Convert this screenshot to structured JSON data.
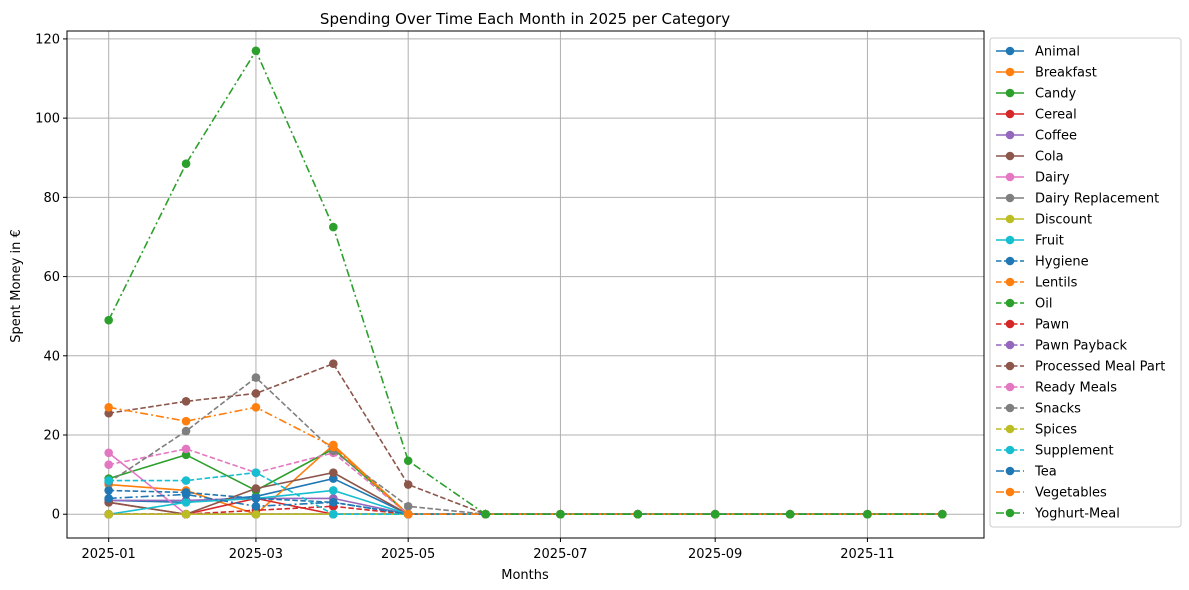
{
  "chart_data": {
    "type": "line",
    "title": "Spending Over Time Each Month in 2025 per Category",
    "xlabel": "Months",
    "ylabel": "Spent Money in €",
    "x": [
      "2025-01-01",
      "2025-02-01",
      "2025-03-01",
      "2025-04-01",
      "2025-05-01",
      "2025-06-01",
      "2025-07-01",
      "2025-08-01",
      "2025-09-01",
      "2025-10-01",
      "2025-11-01",
      "2025-12-01"
    ],
    "x_tick_labels": [
      "2025-01",
      "2025-03",
      "2025-05",
      "2025-07",
      "2025-09",
      "2025-11"
    ],
    "x_tick_dates": [
      "2025-01-01",
      "2025-03-01",
      "2025-05-01",
      "2025-07-01",
      "2025-09-01",
      "2025-11-01"
    ],
    "ylim": [
      -6,
      122
    ],
    "y_ticks": [
      0,
      20,
      40,
      60,
      80,
      100,
      120
    ],
    "grid": true,
    "legend_position": "outside-right",
    "series": [
      {
        "name": "Animal",
        "color": "#1f77b4",
        "dash": "solid",
        "values": [
          3.5,
          3.0,
          4.5,
          9.0,
          0,
          0,
          0,
          0,
          0,
          0,
          0,
          0
        ]
      },
      {
        "name": "Breakfast",
        "color": "#ff7f0e",
        "dash": "solid",
        "values": [
          7.5,
          6.0,
          0,
          17.5,
          0,
          0,
          0,
          0,
          0,
          0,
          0,
          0
        ]
      },
      {
        "name": "Candy",
        "color": "#2ca02c",
        "dash": "solid",
        "values": [
          9.0,
          15.0,
          6.0,
          16.5,
          0,
          0,
          0,
          0,
          0,
          0,
          0,
          0
        ]
      },
      {
        "name": "Cereal",
        "color": "#d62728",
        "dash": "solid",
        "values": [
          3.0,
          0,
          4.0,
          0,
          0,
          0,
          0,
          0,
          0,
          0,
          0,
          0
        ]
      },
      {
        "name": "Coffee",
        "color": "#9467bd",
        "dash": "solid",
        "values": [
          3.5,
          3.5,
          4.0,
          4.0,
          0,
          0,
          0,
          0,
          0,
          0,
          0,
          0
        ]
      },
      {
        "name": "Cola",
        "color": "#8c564b",
        "dash": "solid",
        "values": [
          3.0,
          0,
          6.5,
          10.5,
          0,
          0,
          0,
          0,
          0,
          0,
          0,
          0
        ]
      },
      {
        "name": "Dairy",
        "color": "#e377c2",
        "dash": "solid",
        "values": [
          15.5,
          0,
          0,
          0,
          0,
          0,
          0,
          0,
          0,
          0,
          0,
          0
        ]
      },
      {
        "name": "Dairy Replacement",
        "color": "#7f7f7f",
        "dash": "solid",
        "values": [
          0,
          0,
          0,
          0,
          0,
          0,
          0,
          0,
          0,
          0,
          0,
          0
        ]
      },
      {
        "name": "Discount",
        "color": "#bcbd22",
        "dash": "solid",
        "values": [
          0,
          0,
          0,
          0,
          0,
          0,
          0,
          0,
          0,
          0,
          0,
          0
        ]
      },
      {
        "name": "Fruit",
        "color": "#17becf",
        "dash": "solid",
        "values": [
          0,
          3.0,
          4.0,
          6.0,
          0,
          0,
          0,
          0,
          0,
          0,
          0,
          0
        ]
      },
      {
        "name": "Hygiene",
        "color": "#1f77b4",
        "dash": "dashed",
        "values": [
          6.0,
          5.5,
          4.0,
          3.0,
          0,
          0,
          0,
          0,
          0,
          0,
          0,
          0
        ]
      },
      {
        "name": "Lentils",
        "color": "#ff7f0e",
        "dash": "dashed",
        "values": [
          0,
          0,
          0,
          0,
          0,
          0,
          0,
          0,
          0,
          0,
          0,
          0
        ]
      },
      {
        "name": "Oil",
        "color": "#2ca02c",
        "dash": "dashed",
        "values": [
          0,
          0,
          0,
          0,
          0,
          0,
          0,
          0,
          0,
          0,
          0,
          0
        ]
      },
      {
        "name": "Pawn",
        "color": "#d62728",
        "dash": "dashed",
        "values": [
          0,
          0,
          1.0,
          2.0,
          0,
          0,
          0,
          0,
          0,
          0,
          0,
          0
        ]
      },
      {
        "name": "Pawn Payback",
        "color": "#9467bd",
        "dash": "dashed",
        "values": [
          0,
          0,
          0,
          0,
          0,
          0,
          0,
          0,
          0,
          0,
          0,
          0
        ]
      },
      {
        "name": "Processed Meal Part",
        "color": "#8c564b",
        "dash": "dashed",
        "values": [
          25.5,
          28.5,
          30.5,
          38.0,
          7.5,
          0,
          0,
          0,
          0,
          0,
          0,
          0
        ]
      },
      {
        "name": "Ready Meals",
        "color": "#e377c2",
        "dash": "dashed",
        "values": [
          12.5,
          16.5,
          10.5,
          15.5,
          0,
          0,
          0,
          0,
          0,
          0,
          0,
          0
        ]
      },
      {
        "name": "Snacks",
        "color": "#7f7f7f",
        "dash": "dashed",
        "values": [
          8.0,
          21.0,
          34.5,
          16.0,
          2.0,
          0,
          0,
          0,
          0,
          0,
          0,
          0
        ]
      },
      {
        "name": "Spices",
        "color": "#bcbd22",
        "dash": "dashed",
        "values": [
          0,
          0,
          0,
          0,
          0,
          0,
          0,
          0,
          0,
          0,
          0,
          0
        ]
      },
      {
        "name": "Supplement",
        "color": "#17becf",
        "dash": "dashed",
        "values": [
          8.5,
          8.5,
          10.5,
          0,
          0,
          0,
          0,
          0,
          0,
          0,
          0,
          0
        ]
      },
      {
        "name": "Tea",
        "color": "#1f77b4",
        "dash": "dashdot",
        "values": [
          4.0,
          5.0,
          2.0,
          3.0,
          0,
          0,
          0,
          0,
          0,
          0,
          0,
          0
        ]
      },
      {
        "name": "Vegetables",
        "color": "#ff7f0e",
        "dash": "dashdot",
        "values": [
          27.0,
          23.5,
          27.0,
          17.0,
          0,
          0,
          0,
          0,
          0,
          0,
          0,
          0
        ]
      },
      {
        "name": "Yoghurt-Meal",
        "color": "#2ca02c",
        "dash": "dashdot",
        "values": [
          49.0,
          88.5,
          117.0,
          72.5,
          13.5,
          0,
          0,
          0,
          0,
          0,
          0,
          0
        ]
      }
    ]
  }
}
